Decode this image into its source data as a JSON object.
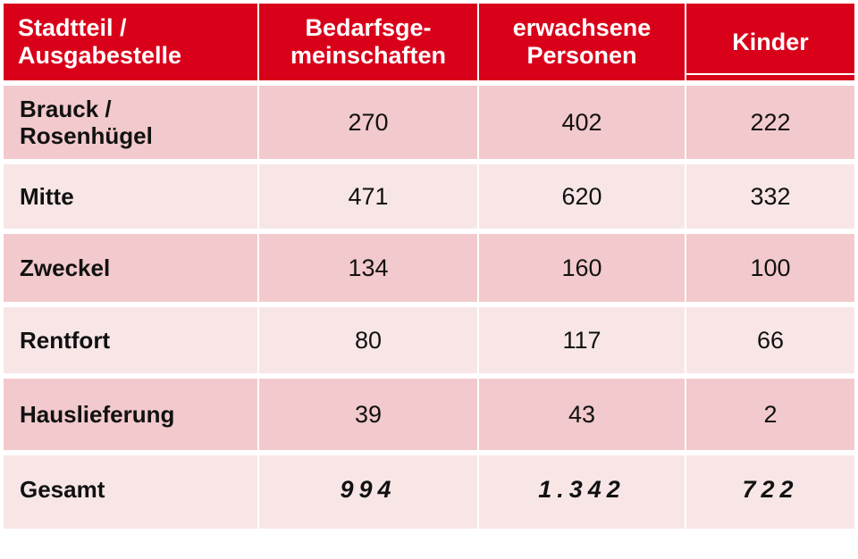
{
  "headers": {
    "col1": "Stadtteil /\nAusgabestelle",
    "col2": "Bedarfsge-\nmeinschaften",
    "col3": "erwachsene\nPersonen",
    "col4": "Kinder"
  },
  "rows": [
    {
      "name": "Brauck /\nRosenhügel",
      "bedarf": "270",
      "erwachsene": "402",
      "kinder": "222"
    },
    {
      "name": "Mitte",
      "bedarf": "471",
      "erwachsene": "620",
      "kinder": "332"
    },
    {
      "name": "Zweckel",
      "bedarf": "134",
      "erwachsene": "160",
      "kinder": "100"
    },
    {
      "name": "Rentfort",
      "bedarf": "80",
      "erwachsene": "117",
      "kinder": "66"
    },
    {
      "name": "Hauslieferung",
      "bedarf": "39",
      "erwachsene": "43",
      "kinder": "2"
    },
    {
      "name": "Gesamt",
      "bedarf": "994",
      "erwachsene": "1.342",
      "kinder": "722"
    }
  ],
  "colors": {
    "header_bg": "#d9001a",
    "row_dark": "#f2c9cc",
    "row_light": "#f8e6e7"
  }
}
